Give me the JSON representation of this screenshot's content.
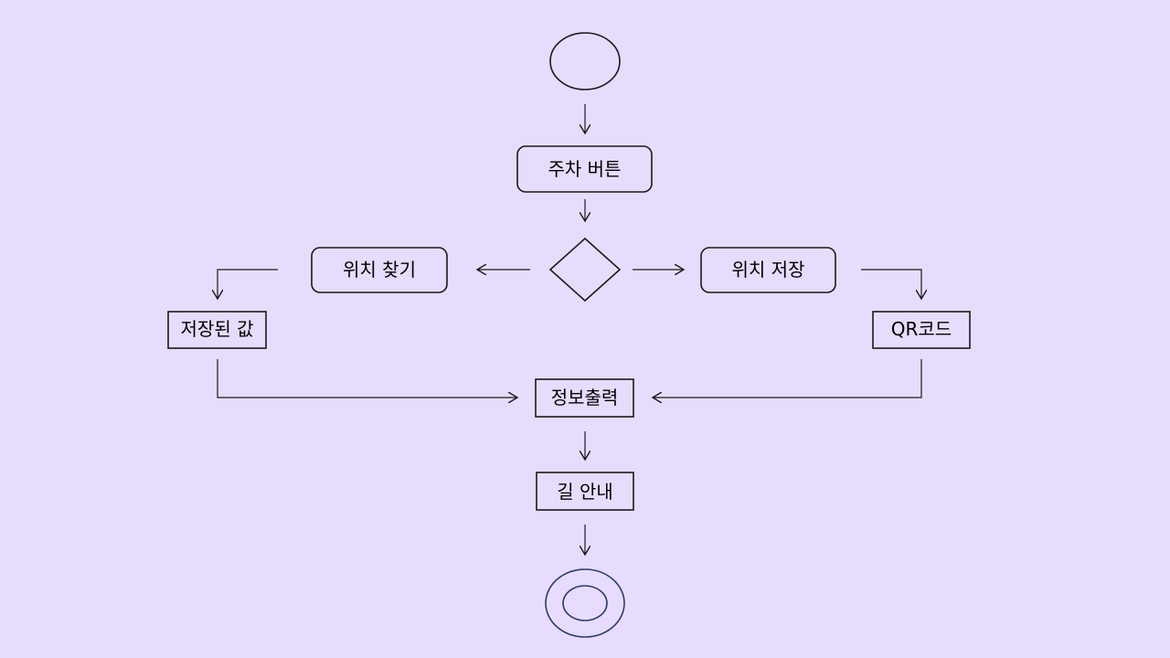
{
  "diagram": {
    "nodes": {
      "parking_button": "주차 버튼",
      "find_location": "위치 찾기",
      "save_location": "위치 저장",
      "saved_value": "저장된 값",
      "qr_code": "QR코드",
      "info_output": "정보출력",
      "navigation": "길 안내"
    }
  },
  "colors": {
    "background": "#e8dcfd",
    "stroke": "#1a1a1a",
    "end_node_stroke": "#2c3e66"
  }
}
